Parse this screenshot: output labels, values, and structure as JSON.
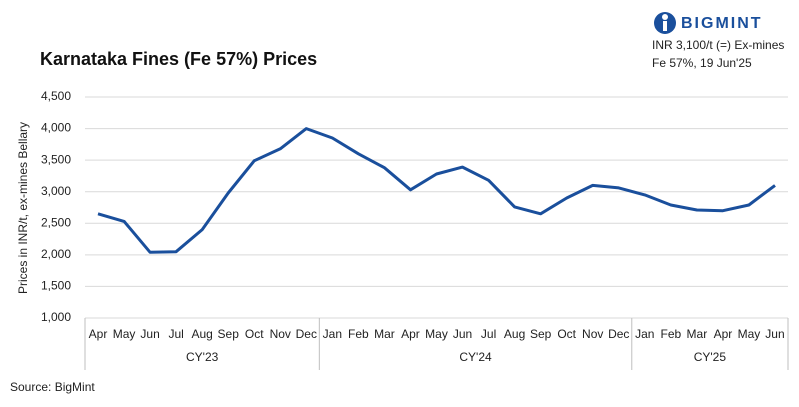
{
  "chart_data": {
    "type": "line",
    "title": "Karnataka Fines (Fe 57%) Prices",
    "brand": "BIGMINT",
    "annotations": [
      "INR 3,100/t (=) Ex-mines",
      "Fe 57%, 19 Jun'25"
    ],
    "ylabel": "Prices in INR/t, ex-mines Bellary",
    "source": "Source: BigMint",
    "groups": [
      {
        "name": "CY'23",
        "categories": [
          "Apr",
          "May",
          "Jun",
          "Jul",
          "Aug",
          "Sep",
          "Oct",
          "Nov",
          "Dec"
        ]
      },
      {
        "name": "CY'24",
        "categories": [
          "Jan",
          "Feb",
          "Mar",
          "Apr",
          "May",
          "Jun",
          "Jul",
          "Aug",
          "Sep",
          "Oct",
          "Nov",
          "Dec"
        ]
      },
      {
        "name": "CY'25",
        "categories": [
          "Jan",
          "Feb",
          "Mar",
          "Apr",
          "May",
          "Jun"
        ]
      }
    ],
    "series": [
      {
        "name": "Karnataka Fines (Fe 57%)",
        "color": "#1a4f9c",
        "values": [
          2650,
          2530,
          2040,
          2050,
          2400,
          2980,
          3490,
          3680,
          4000,
          3850,
          3600,
          3380,
          3030,
          3280,
          3390,
          3180,
          2760,
          2650,
          2900,
          3100,
          3060,
          2950,
          2790,
          2710,
          2700,
          2790,
          3100
        ]
      }
    ],
    "ylim": [
      1000,
      4500
    ],
    "yticks": [
      {
        "value": 1000,
        "label": "1,000"
      },
      {
        "value": 1500,
        "label": "1,500"
      },
      {
        "value": 2000,
        "label": "2,000"
      },
      {
        "value": 2500,
        "label": "2,500"
      },
      {
        "value": 3000,
        "label": "3,000"
      },
      {
        "value": 3500,
        "label": "3,500"
      },
      {
        "value": 4000,
        "label": "4,000"
      },
      {
        "value": 4500,
        "label": "4,500"
      }
    ],
    "grid": true
  }
}
